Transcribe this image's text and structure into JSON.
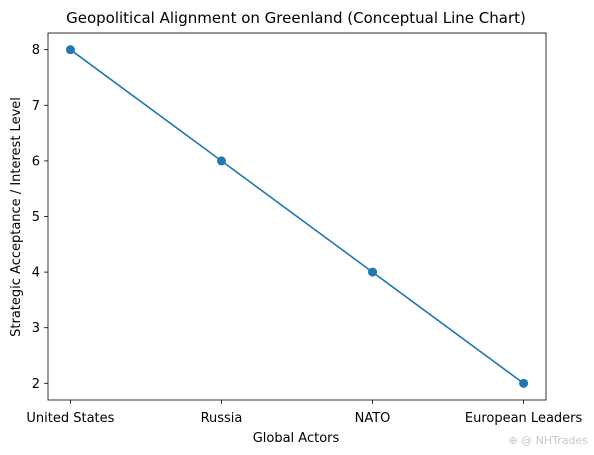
{
  "chart_data": {
    "type": "line",
    "title": "Geopolitical Alignment on Greenland (Conceptual Line Chart)",
    "xlabel": "Global Actors",
    "ylabel": "Strategic Acceptance / Interest Level",
    "categories": [
      "United States",
      "Russia",
      "NATO",
      "European Leaders"
    ],
    "values": [
      8,
      6,
      4,
      2
    ],
    "yticks": [
      2,
      3,
      4,
      5,
      6,
      7,
      8
    ],
    "ylim": [
      1.7,
      8.3
    ],
    "grid": false,
    "legend": "none",
    "line_color": "#1f77b4",
    "marker": "circle"
  },
  "watermark": {
    "text": "⊕ @ NHTrades"
  }
}
